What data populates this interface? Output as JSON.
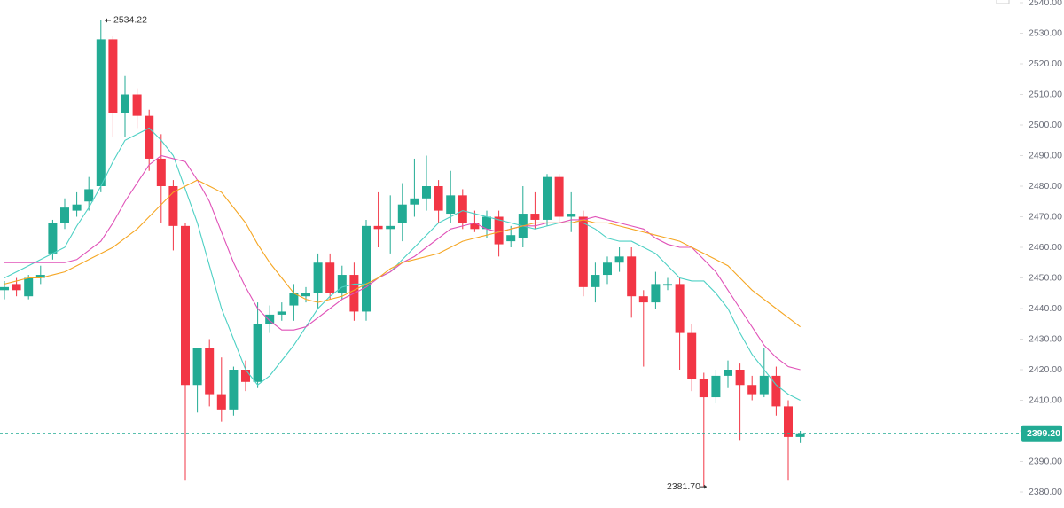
{
  "chart_data": {
    "type": "candlestick",
    "up_color": "#22ab94",
    "down_color": "#f23645",
    "open": [
      2446,
      2448,
      2444,
      2450,
      2458,
      2468,
      2472,
      2475,
      2480,
      2528,
      2504,
      2510,
      2503,
      2489,
      2480,
      2467,
      2415,
      2427,
      2412,
      2407,
      2420,
      2416,
      2435,
      2438,
      2441,
      2444,
      2445,
      2455,
      2445,
      2451,
      2439,
      2467,
      2466,
      2468,
      2474,
      2476,
      2480,
      2471,
      2477,
      2468,
      2466,
      2470,
      2462,
      2463,
      2471,
      2469,
      2483,
      2470,
      2470,
      2447,
      2451,
      2455,
      2457,
      2444,
      2442,
      2447.5,
      2448,
      2432,
      2417,
      2411,
      2418,
      2420,
      2415,
      2412,
      2418,
      2408,
      2398
    ],
    "high": [
      2449,
      2450,
      2451,
      2454,
      2469,
      2476,
      2478,
      2483,
      2534.22,
      2529,
      2516,
      2512,
      2505,
      2497,
      2482,
      2468,
      2427,
      2430,
      2424,
      2421,
      2423,
      2442,
      2441,
      2442,
      2448,
      2447,
      2458,
      2458,
      2454,
      2455,
      2469,
      2478,
      2477,
      2481,
      2489,
      2490,
      2482,
      2485,
      2479,
      2472,
      2472,
      2472,
      2467,
      2480,
      2478,
      2484,
      2484,
      2478,
      2472,
      2455,
      2457,
      2460,
      2460,
      2446,
      2452,
      2450,
      2450,
      2435,
      2419,
      2420,
      2423,
      2422,
      2418,
      2427,
      2421,
      2410,
      2400
    ],
    "low": [
      2443,
      2444,
      2443,
      2448,
      2456,
      2466,
      2470,
      2472,
      2478,
      2496,
      2496,
      2499,
      2485,
      2468,
      2459,
      2384,
      2406,
      2408,
      2403,
      2405,
      2413,
      2414,
      2432,
      2436,
      2436,
      2442,
      2440,
      2443,
      2443,
      2436,
      2436,
      2460,
      2458,
      2462,
      2470,
      2472,
      2468,
      2468,
      2466,
      2465,
      2463,
      2457,
      2460,
      2460,
      2466,
      2467,
      2468,
      2465,
      2444,
      2442,
      2448,
      2452,
      2437,
      2421,
      2440,
      2446,
      2420,
      2413,
      2381.7,
      2409,
      2414,
      2397,
      2410,
      2411,
      2405,
      2384,
      2396
    ],
    "close": [
      2447,
      2446,
      2450,
      2451,
      2468,
      2473,
      2474,
      2479,
      2528,
      2504,
      2510,
      2503,
      2489,
      2480,
      2467,
      2415,
      2427,
      2412,
      2407,
      2420,
      2416,
      2435,
      2438,
      2439,
      2445,
      2445,
      2455,
      2445,
      2451,
      2439,
      2467,
      2466,
      2467,
      2474,
      2476,
      2480,
      2472,
      2477,
      2468,
      2466,
      2470,
      2461,
      2464,
      2471,
      2469,
      2483,
      2470,
      2471,
      2447,
      2451,
      2455,
      2457,
      2444,
      2442,
      2448,
      2448,
      2432,
      2417,
      2411,
      2418,
      2420,
      2415,
      2412,
      2418,
      2408,
      2398,
      2399.2
    ],
    "series": [
      {
        "color": "#4dd0c4",
        "values": [
          2450,
          2452,
          2454,
          2456,
          2458,
          2460,
          2467,
          2473,
          2480,
          2488,
          2495,
          2497,
          2499,
          2495,
          2490,
          2479,
          2468,
          2454,
          2440,
          2430,
          2420,
          2415,
          2418,
          2423,
          2428,
          2434,
          2440,
          2444,
          2447,
          2448,
          2448,
          2450,
          2452,
          2456,
          2460,
          2464,
          2468,
          2470,
          2472,
          2471,
          2470,
          2469,
          2468,
          2467,
          2466,
          2467,
          2468,
          2468,
          2468,
          2466,
          2463,
          2462,
          2462,
          2460,
          2458,
          2454,
          2450,
          2449,
          2449,
          2445,
          2440,
          2432,
          2425,
          2420,
          2415,
          2412,
          2410
        ]
      },
      {
        "color": "#e052b8",
        "values": [
          2455,
          2455,
          2455,
          2455,
          2455,
          2455,
          2456,
          2459,
          2462,
          2468,
          2475,
          2481,
          2487,
          2490,
          2489,
          2488,
          2482,
          2475,
          2465,
          2455,
          2447,
          2440,
          2436,
          2433,
          2433,
          2434,
          2437,
          2440,
          2443,
          2445,
          2447,
          2450,
          2452,
          2455,
          2457,
          2460,
          2463,
          2466,
          2467,
          2468,
          2466,
          2465,
          2466,
          2467,
          2467,
          2468,
          2468,
          2469,
          2469,
          2470,
          2469,
          2468,
          2467,
          2466,
          2463,
          2461,
          2460,
          2460,
          2456,
          2452,
          2446,
          2440,
          2434,
          2428,
          2424,
          2421,
          2420
        ]
      },
      {
        "color": "#f5a623",
        "values": [
          2448,
          2449,
          2450,
          2450,
          2451,
          2452,
          2454,
          2456,
          2458,
          2460,
          2463,
          2466,
          2470,
          2474,
          2478,
          2480,
          2482,
          2480,
          2478,
          2473,
          2468,
          2461,
          2455,
          2450,
          2445,
          2443,
          2442,
          2443,
          2444,
          2446,
          2448,
          2450,
          2453,
          2455,
          2456,
          2457,
          2458,
          2460,
          2462,
          2463,
          2464,
          2465,
          2466,
          2467,
          2468,
          2468,
          2468,
          2468,
          2469,
          2468,
          2468,
          2467,
          2466,
          2465,
          2464,
          2463,
          2462,
          2460,
          2458,
          2456,
          2454,
          2450,
          2446,
          2443,
          2440,
          2437,
          2434
        ]
      }
    ],
    "ylim": [
      2380,
      2540
    ],
    "yticks": [
      {
        "value": 2380,
        "label": "2380.00"
      },
      {
        "value": 2390,
        "label": "2390.00"
      },
      {
        "value": 2400,
        "label": "2400.00"
      },
      {
        "value": 2410,
        "label": "2410.00"
      },
      {
        "value": 2420,
        "label": "2420.00"
      },
      {
        "value": 2430,
        "label": "2430.00"
      },
      {
        "value": 2440,
        "label": "2440.00"
      },
      {
        "value": 2450,
        "label": "2450.00"
      },
      {
        "value": 2460,
        "label": "2460.00"
      },
      {
        "value": 2470,
        "label": "2470.00"
      },
      {
        "value": 2480,
        "label": "2480.00"
      },
      {
        "value": 2490,
        "label": "2490.00"
      },
      {
        "value": 2500,
        "label": "2500.00"
      },
      {
        "value": 2510,
        "label": "2510.00"
      },
      {
        "value": 2520,
        "label": "2520.00"
      },
      {
        "value": 2530,
        "label": "2530.00"
      },
      {
        "value": 2540,
        "label": "2540.00"
      }
    ],
    "last_price": {
      "value": 2399.2,
      "label": "2399.20"
    },
    "high_annotation": {
      "value": 2534.22,
      "label": "2534.22"
    },
    "low_annotation": {
      "value": 2381.7,
      "label": "2381.70"
    }
  }
}
